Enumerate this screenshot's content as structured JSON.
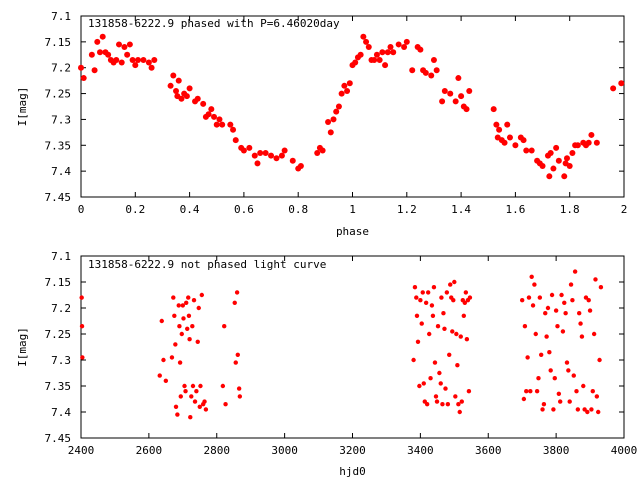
{
  "chart_data": [
    {
      "type": "scatter",
      "title": "131858-6222.9 phased with P=6.46020day",
      "xlabel": "phase",
      "ylabel": "I[mag]",
      "xlim": [
        0,
        2
      ],
      "ylim": [
        7.45,
        7.1
      ],
      "y_inverted": true,
      "grid": false,
      "marker_color": "#ff0000",
      "xticks": [
        "0",
        "0.2",
        "0.4",
        "0.6",
        "0.8",
        "1",
        "1.2",
        "1.4",
        "1.6",
        "1.8",
        "2"
      ],
      "yticks": [
        "7.1",
        "7.15",
        "7.2",
        "7.25",
        "7.3",
        "7.35",
        "7.4",
        "7.45"
      ],
      "points": [
        [
          0.0,
          7.2
        ],
        [
          0.01,
          7.22
        ],
        [
          0.04,
          7.175
        ],
        [
          0.05,
          7.205
        ],
        [
          0.06,
          7.15
        ],
        [
          0.07,
          7.17
        ],
        [
          0.08,
          7.14
        ],
        [
          0.09,
          7.17
        ],
        [
          0.1,
          7.175
        ],
        [
          0.11,
          7.185
        ],
        [
          0.12,
          7.19
        ],
        [
          0.13,
          7.185
        ],
        [
          0.14,
          7.155
        ],
        [
          0.15,
          7.19
        ],
        [
          0.16,
          7.16
        ],
        [
          0.17,
          7.175
        ],
        [
          0.18,
          7.155
        ],
        [
          0.19,
          7.185
        ],
        [
          0.2,
          7.195
        ],
        [
          0.21,
          7.185
        ],
        [
          0.23,
          7.185
        ],
        [
          0.25,
          7.19
        ],
        [
          0.26,
          7.2
        ],
        [
          0.27,
          7.185
        ],
        [
          0.33,
          7.235
        ],
        [
          0.34,
          7.215
        ],
        [
          0.35,
          7.245
        ],
        [
          0.355,
          7.255
        ],
        [
          0.36,
          7.225
        ],
        [
          0.37,
          7.26
        ],
        [
          0.38,
          7.25
        ],
        [
          0.39,
          7.255
        ],
        [
          0.4,
          7.24
        ],
        [
          0.42,
          7.265
        ],
        [
          0.43,
          7.26
        ],
        [
          0.45,
          7.27
        ],
        [
          0.46,
          7.295
        ],
        [
          0.47,
          7.29
        ],
        [
          0.48,
          7.28
        ],
        [
          0.49,
          7.295
        ],
        [
          0.5,
          7.31
        ],
        [
          0.51,
          7.3
        ],
        [
          0.52,
          7.31
        ],
        [
          0.55,
          7.31
        ],
        [
          0.56,
          7.32
        ],
        [
          0.57,
          7.34
        ],
        [
          0.59,
          7.355
        ],
        [
          0.6,
          7.36
        ],
        [
          0.62,
          7.355
        ],
        [
          0.64,
          7.37
        ],
        [
          0.65,
          7.385
        ],
        [
          0.66,
          7.365
        ],
        [
          0.68,
          7.365
        ],
        [
          0.7,
          7.37
        ],
        [
          0.72,
          7.375
        ],
        [
          0.74,
          7.37
        ],
        [
          0.75,
          7.36
        ],
        [
          0.78,
          7.38
        ],
        [
          0.8,
          7.395
        ],
        [
          0.81,
          7.39
        ],
        [
          0.87,
          7.365
        ],
        [
          0.88,
          7.355
        ],
        [
          0.89,
          7.36
        ],
        [
          0.91,
          7.305
        ],
        [
          0.92,
          7.325
        ],
        [
          0.93,
          7.3
        ],
        [
          0.94,
          7.285
        ],
        [
          0.95,
          7.275
        ],
        [
          0.96,
          7.25
        ],
        [
          0.97,
          7.235
        ],
        [
          0.98,
          7.245
        ],
        [
          0.99,
          7.23
        ],
        [
          1.0,
          7.195
        ],
        [
          1.01,
          7.19
        ],
        [
          1.02,
          7.18
        ],
        [
          1.03,
          7.175
        ],
        [
          1.04,
          7.14
        ],
        [
          1.05,
          7.15
        ],
        [
          1.06,
          7.16
        ],
        [
          1.07,
          7.185
        ],
        [
          1.08,
          7.185
        ],
        [
          1.09,
          7.175
        ],
        [
          1.1,
          7.185
        ],
        [
          1.11,
          7.17
        ],
        [
          1.12,
          7.195
        ],
        [
          1.13,
          7.17
        ],
        [
          1.14,
          7.16
        ],
        [
          1.15,
          7.17
        ],
        [
          1.17,
          7.155
        ],
        [
          1.19,
          7.16
        ],
        [
          1.2,
          7.15
        ],
        [
          1.22,
          7.205
        ],
        [
          1.24,
          7.16
        ],
        [
          1.25,
          7.165
        ],
        [
          1.26,
          7.205
        ],
        [
          1.27,
          7.21
        ],
        [
          1.29,
          7.215
        ],
        [
          1.3,
          7.185
        ],
        [
          1.31,
          7.205
        ],
        [
          1.33,
          7.265
        ],
        [
          1.34,
          7.245
        ],
        [
          1.36,
          7.25
        ],
        [
          1.38,
          7.265
        ],
        [
          1.39,
          7.22
        ],
        [
          1.4,
          7.255
        ],
        [
          1.41,
          7.275
        ],
        [
          1.42,
          7.28
        ],
        [
          1.43,
          7.245
        ],
        [
          1.52,
          7.28
        ],
        [
          1.53,
          7.31
        ],
        [
          1.535,
          7.335
        ],
        [
          1.54,
          7.32
        ],
        [
          1.55,
          7.34
        ],
        [
          1.56,
          7.345
        ],
        [
          1.57,
          7.31
        ],
        [
          1.58,
          7.335
        ],
        [
          1.6,
          7.35
        ],
        [
          1.62,
          7.335
        ],
        [
          1.63,
          7.34
        ],
        [
          1.64,
          7.36
        ],
        [
          1.66,
          7.36
        ],
        [
          1.68,
          7.38
        ],
        [
          1.69,
          7.385
        ],
        [
          1.7,
          7.39
        ],
        [
          1.72,
          7.37
        ],
        [
          1.725,
          7.41
        ],
        [
          1.73,
          7.365
        ],
        [
          1.74,
          7.395
        ],
        [
          1.75,
          7.355
        ],
        [
          1.76,
          7.38
        ],
        [
          1.78,
          7.41
        ],
        [
          1.785,
          7.385
        ],
        [
          1.79,
          7.375
        ],
        [
          1.8,
          7.39
        ],
        [
          1.81,
          7.365
        ],
        [
          1.82,
          7.35
        ],
        [
          1.83,
          7.35
        ],
        [
          1.85,
          7.345
        ],
        [
          1.86,
          7.35
        ],
        [
          1.87,
          7.345
        ],
        [
          1.88,
          7.33
        ],
        [
          1.9,
          7.345
        ],
        [
          1.96,
          7.24
        ],
        [
          1.99,
          7.23
        ]
      ]
    },
    {
      "type": "scatter",
      "title": "131858-6222.9 not phased light curve",
      "xlabel": "hjd0",
      "ylabel": "I[mag]",
      "xlim": [
        2400,
        4000
      ],
      "ylim": [
        7.45,
        7.1
      ],
      "y_inverted": true,
      "grid": false,
      "marker_color": "#ff0000",
      "xticks": [
        "2400",
        "2600",
        "2800",
        "3000",
        "3200",
        "3400",
        "3600",
        "3800",
        "4000"
      ],
      "yticks": [
        "7.1",
        "7.15",
        "7.2",
        "7.25",
        "7.3",
        "7.35",
        "7.4",
        "7.45"
      ],
      "points": [
        [
          2402,
          7.18
        ],
        [
          2403,
          7.235
        ],
        [
          2404,
          7.295
        ],
        [
          2632,
          7.33
        ],
        [
          2638,
          7.225
        ],
        [
          2643,
          7.3
        ],
        [
          2650,
          7.34
        ],
        [
          2668,
          7.295
        ],
        [
          2672,
          7.18
        ],
        [
          2675,
          7.215
        ],
        [
          2678,
          7.27
        ],
        [
          2680,
          7.39
        ],
        [
          2684,
          7.405
        ],
        [
          2688,
          7.195
        ],
        [
          2690,
          7.235
        ],
        [
          2692,
          7.305
        ],
        [
          2694,
          7.37
        ],
        [
          2697,
          7.25
        ],
        [
          2700,
          7.195
        ],
        [
          2702,
          7.22
        ],
        [
          2705,
          7.35
        ],
        [
          2708,
          7.36
        ],
        [
          2710,
          7.19
        ],
        [
          2713,
          7.24
        ],
        [
          2716,
          7.18
        ],
        [
          2718,
          7.215
        ],
        [
          2720,
          7.26
        ],
        [
          2722,
          7.41
        ],
        [
          2725,
          7.37
        ],
        [
          2728,
          7.235
        ],
        [
          2730,
          7.35
        ],
        [
          2733,
          7.185
        ],
        [
          2736,
          7.38
        ],
        [
          2740,
          7.36
        ],
        [
          2744,
          7.265
        ],
        [
          2747,
          7.2
        ],
        [
          2750,
          7.39
        ],
        [
          2752,
          7.35
        ],
        [
          2756,
          7.175
        ],
        [
          2760,
          7.385
        ],
        [
          2764,
          7.38
        ],
        [
          2768,
          7.395
        ],
        [
          2818,
          7.35
        ],
        [
          2822,
          7.235
        ],
        [
          2826,
          7.385
        ],
        [
          2853,
          7.19
        ],
        [
          2856,
          7.305
        ],
        [
          2860,
          7.17
        ],
        [
          2862,
          7.29
        ],
        [
          2866,
          7.355
        ],
        [
          2868,
          7.37
        ],
        [
          3380,
          7.3
        ],
        [
          3384,
          7.16
        ],
        [
          3388,
          7.18
        ],
        [
          3390,
          7.215
        ],
        [
          3393,
          7.265
        ],
        [
          3397,
          7.35
        ],
        [
          3400,
          7.185
        ],
        [
          3404,
          7.23
        ],
        [
          3407,
          7.17
        ],
        [
          3410,
          7.345
        ],
        [
          3413,
          7.38
        ],
        [
          3417,
          7.19
        ],
        [
          3420,
          7.385
        ],
        [
          3423,
          7.17
        ],
        [
          3426,
          7.25
        ],
        [
          3430,
          7.335
        ],
        [
          3434,
          7.195
        ],
        [
          3437,
          7.215
        ],
        [
          3440,
          7.16
        ],
        [
          3443,
          7.305
        ],
        [
          3446,
          7.37
        ],
        [
          3449,
          7.38
        ],
        [
          3452,
          7.235
        ],
        [
          3456,
          7.325
        ],
        [
          3460,
          7.345
        ],
        [
          3462,
          7.18
        ],
        [
          3465,
          7.385
        ],
        [
          3468,
          7.21
        ],
        [
          3471,
          7.24
        ],
        [
          3474,
          7.355
        ],
        [
          3478,
          7.17
        ],
        [
          3481,
          7.385
        ],
        [
          3485,
          7.29
        ],
        [
          3488,
          7.155
        ],
        [
          3491,
          7.18
        ],
        [
          3494,
          7.245
        ],
        [
          3497,
          7.185
        ],
        [
          3500,
          7.15
        ],
        [
          3503,
          7.37
        ],
        [
          3506,
          7.25
        ],
        [
          3509,
          7.31
        ],
        [
          3512,
          7.385
        ],
        [
          3516,
          7.4
        ],
        [
          3519,
          7.255
        ],
        [
          3522,
          7.38
        ],
        [
          3525,
          7.185
        ],
        [
          3528,
          7.215
        ],
        [
          3531,
          7.19
        ],
        [
          3534,
          7.17
        ],
        [
          3537,
          7.26
        ],
        [
          3540,
          7.185
        ],
        [
          3543,
          7.36
        ],
        [
          3546,
          7.18
        ],
        [
          3700,
          7.185
        ],
        [
          3705,
          7.375
        ],
        [
          3708,
          7.235
        ],
        [
          3712,
          7.36
        ],
        [
          3716,
          7.295
        ],
        [
          3720,
          7.18
        ],
        [
          3724,
          7.36
        ],
        [
          3728,
          7.14
        ],
        [
          3732,
          7.195
        ],
        [
          3736,
          7.155
        ],
        [
          3740,
          7.25
        ],
        [
          3744,
          7.36
        ],
        [
          3748,
          7.335
        ],
        [
          3752,
          7.18
        ],
        [
          3756,
          7.29
        ],
        [
          3760,
          7.395
        ],
        [
          3764,
          7.385
        ],
        [
          3768,
          7.21
        ],
        [
          3772,
          7.255
        ],
        [
          3776,
          7.2
        ],
        [
          3780,
          7.285
        ],
        [
          3784,
          7.32
        ],
        [
          3788,
          7.175
        ],
        [
          3792,
          7.395
        ],
        [
          3796,
          7.335
        ],
        [
          3800,
          7.205
        ],
        [
          3804,
          7.235
        ],
        [
          3808,
          7.365
        ],
        [
          3812,
          7.38
        ],
        [
          3816,
          7.175
        ],
        [
          3820,
          7.245
        ],
        [
          3824,
          7.19
        ],
        [
          3828,
          7.21
        ],
        [
          3832,
          7.305
        ],
        [
          3836,
          7.32
        ],
        [
          3840,
          7.38
        ],
        [
          3844,
          7.155
        ],
        [
          3848,
          7.185
        ],
        [
          3852,
          7.33
        ],
        [
          3856,
          7.13
        ],
        [
          3860,
          7.36
        ],
        [
          3864,
          7.395
        ],
        [
          3868,
          7.21
        ],
        [
          3872,
          7.23
        ],
        [
          3876,
          7.255
        ],
        [
          3880,
          7.35
        ],
        [
          3884,
          7.395
        ],
        [
          3888,
          7.18
        ],
        [
          3892,
          7.4
        ],
        [
          3896,
          7.185
        ],
        [
          3900,
          7.205
        ],
        [
          3904,
          7.395
        ],
        [
          3908,
          7.36
        ],
        [
          3912,
          7.25
        ],
        [
          3916,
          7.145
        ],
        [
          3920,
          7.37
        ],
        [
          3924,
          7.4
        ],
        [
          3928,
          7.3
        ],
        [
          3932,
          7.16
        ]
      ]
    }
  ]
}
